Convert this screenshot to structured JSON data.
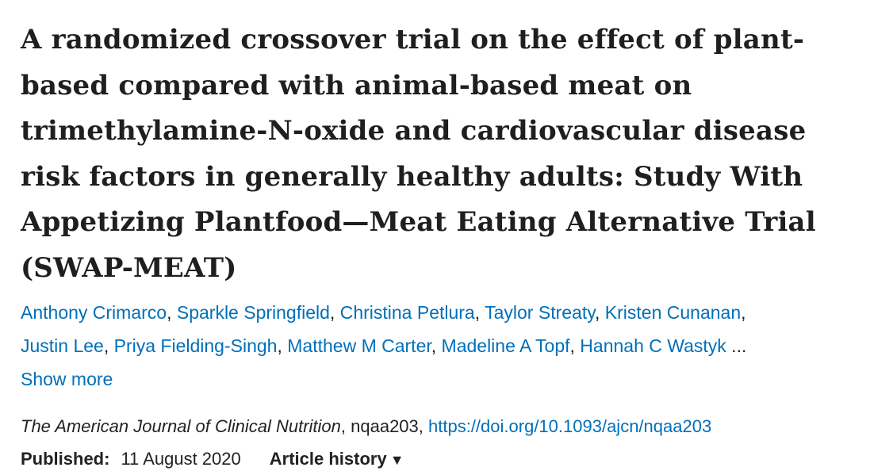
{
  "article": {
    "title_lines": [
      "A randomized crossover trial on the effect of plant-",
      "based compared with animal-based meat on",
      "trimethylamine-N-oxide and cardiovascular disease",
      "risk factors in generally healthy adults: Study With",
      "Appetizing Plantfood—Meat Eating Alternative Trial",
      "(SWAP-MEAT)"
    ],
    "authors": [
      "Anthony Crimarco",
      "Sparkle Springfield",
      "Christina Petlura",
      "Taylor Streaty",
      "Kristen Cunanan",
      "Justin Lee",
      "Priya Fielding-Singh",
      "Matthew M Carter",
      "Madeline A Topf",
      "Hannah C Wastyk"
    ],
    "author_separator": ", ",
    "trailing_separator": ",",
    "ellipsis": " ...",
    "show_more": "Show more",
    "citation": {
      "journal": "The American Journal of Clinical Nutrition",
      "article_id": ", nqaa203, ",
      "doi_url": "https://doi.org/10.1093/ajcn/nqaa203"
    },
    "published_label": "Published:",
    "published_date": "11 August 2020",
    "article_history_label": "Article history",
    "article_history_caret": "▼"
  },
  "colors": {
    "link": "#006fb9",
    "text": "#1f1f1f"
  }
}
